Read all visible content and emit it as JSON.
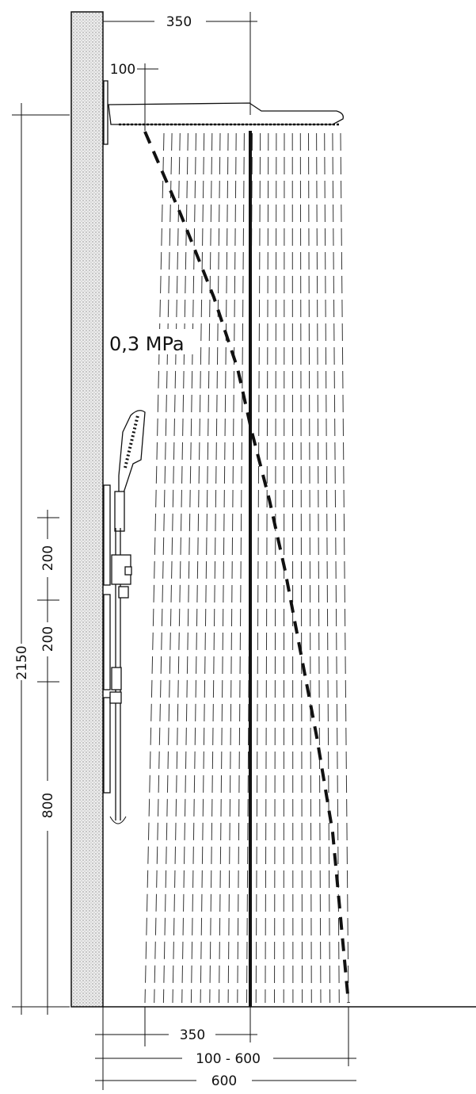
{
  "pressure_label": "0,3 MPa",
  "dimensions": {
    "head_reach": "350",
    "arm_offset": "100",
    "total_height": "2150",
    "panel_upper": "200",
    "panel_lower": "200",
    "bottom_height": "800",
    "floor_center": "350",
    "spray_range": "100 - 600",
    "floor_total": "600"
  },
  "colors": {
    "line": "#111111",
    "wall_fill": "#e6e6e6"
  }
}
